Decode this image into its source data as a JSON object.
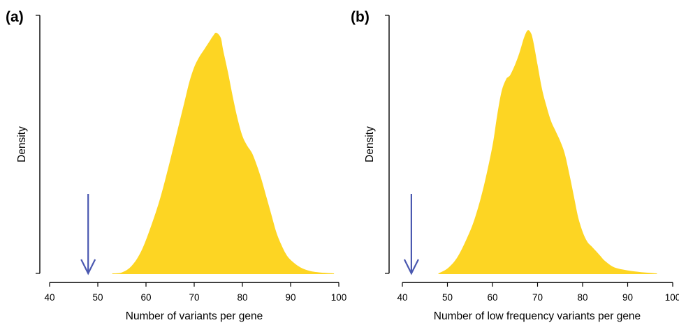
{
  "chart_data": [
    {
      "type": "area",
      "panel_label": "a",
      "xlabel": "Number of variants per gene",
      "ylabel": "Density",
      "xlim": [
        40,
        100
      ],
      "xticks": [
        40,
        50,
        60,
        70,
        80,
        90,
        100
      ],
      "fill_color": "#FDD523",
      "arrow_color": "#4A58B0",
      "observed_value": 48,
      "series": [
        {
          "x": [
            53,
            55,
            57,
            59,
            61,
            63,
            65,
            67,
            68,
            69,
            70,
            71,
            72,
            73,
            74,
            74.6,
            75.5,
            76,
            77,
            78,
            79,
            80,
            81,
            82,
            83,
            84,
            85,
            86,
            87,
            88,
            89,
            90,
            92,
            94,
            96,
            99
          ],
          "y": [
            0,
            0.004,
            0.03,
            0.09,
            0.19,
            0.31,
            0.46,
            0.62,
            0.7,
            0.78,
            0.84,
            0.88,
            0.91,
            0.94,
            0.97,
            0.98,
            0.96,
            0.91,
            0.82,
            0.72,
            0.63,
            0.56,
            0.52,
            0.49,
            0.44,
            0.38,
            0.31,
            0.24,
            0.17,
            0.12,
            0.08,
            0.055,
            0.025,
            0.01,
            0.004,
            0
          ]
        }
      ]
    },
    {
      "type": "area",
      "panel_label": "b",
      "xlabel": "Number of low frequency variants per gene",
      "ylabel": "Density",
      "xlim": [
        40,
        100
      ],
      "xticks": [
        40,
        50,
        60,
        70,
        80,
        90,
        100
      ],
      "fill_color": "#FDD523",
      "arrow_color": "#4A58B0",
      "observed_value": 42,
      "series": [
        {
          "x": [
            48,
            50,
            52,
            54,
            56,
            58,
            60,
            61,
            62,
            63,
            63.5,
            64,
            65,
            66,
            67,
            67.8,
            68.5,
            69,
            70,
            71,
            72,
            73,
            74,
            75,
            76,
            77,
            78,
            79,
            80,
            81,
            82,
            83,
            84,
            85,
            87,
            90,
            93,
            96.5
          ],
          "y": [
            0,
            0.02,
            0.06,
            0.13,
            0.22,
            0.35,
            0.52,
            0.64,
            0.74,
            0.79,
            0.8,
            0.81,
            0.85,
            0.9,
            0.96,
            0.99,
            0.98,
            0.95,
            0.85,
            0.75,
            0.68,
            0.62,
            0.58,
            0.54,
            0.49,
            0.41,
            0.32,
            0.23,
            0.17,
            0.13,
            0.11,
            0.09,
            0.07,
            0.05,
            0.025,
            0.012,
            0.005,
            0
          ]
        }
      ]
    }
  ]
}
